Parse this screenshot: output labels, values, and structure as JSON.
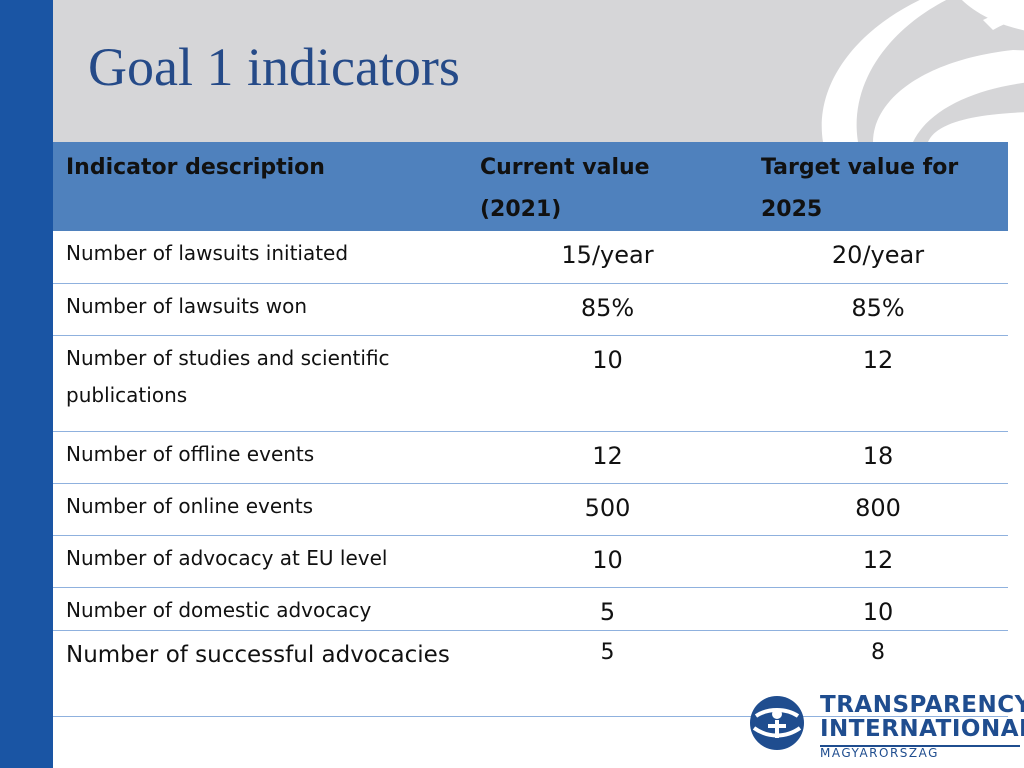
{
  "slide": {
    "title": "Goal 1 indicators"
  },
  "table": {
    "headers": [
      "Indicator description",
      "Current value (2021)",
      "Target value for 2025"
    ],
    "rows": [
      {
        "description": "Number of lawsuits initiated",
        "current": "15/year",
        "target": "20/year"
      },
      {
        "description": "Number of lawsuits won",
        "current": "85%",
        "target": "85%"
      },
      {
        "description": "Number of studies and scientific publications",
        "current": "10",
        "target": "12"
      },
      {
        "description": "Number of offline events",
        "current": "12",
        "target": "18"
      },
      {
        "description": "Number of online events",
        "current": "500",
        "target": "800"
      },
      {
        "description": "Number of advocacy at EU level",
        "current": "10",
        "target": "12"
      },
      {
        "description": "Number of domestic advocacy",
        "current": "5",
        "target": "10"
      },
      {
        "description": "Number of successful advocacies",
        "current": "5",
        "target": "8"
      }
    ]
  },
  "logo": {
    "line1": "TRANSPARENCY",
    "line2": "INTERNATIONAL",
    "line3": "MAGYARORSZÁG"
  },
  "colors": {
    "side_bar": "#1a55a4",
    "header_band": "#d6d6d8",
    "title_text": "#254a88",
    "table_header": "#4f81bd",
    "row_border": "#8fb1de",
    "logo_blue": "#1f4d8f"
  }
}
